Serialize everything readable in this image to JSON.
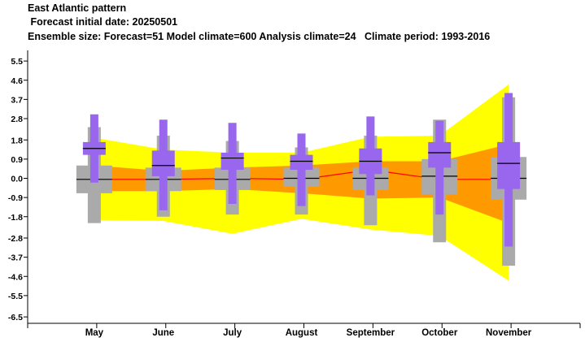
{
  "header": {
    "line1": "East Atlantic pattern",
    "line2": " Forecast initial date: 20250501",
    "line3": "Ensemble size: Forecast=51 Model climate=600 Analysis climate=24   Climate period: 1993-2016"
  },
  "colors": {
    "outer_band": "#ffff00",
    "inner_band": "#ff9900",
    "median_line": "#ff0000",
    "forecast_box": "#9966ee",
    "climate_box": "#aaaaaa",
    "median_tick": "#000000"
  },
  "chart_data": {
    "type": "box",
    "title": "East Atlantic pattern",
    "subtitle": " Forecast initial date: 20250501",
    "categories": [
      "May",
      "June",
      "July",
      "August",
      "September",
      "October",
      "November"
    ],
    "y_ticks": [
      "5.5",
      "4.6",
      "3.7",
      "2.8",
      "1.8",
      "0.9",
      "0.0",
      "-0.9",
      "-1.8",
      "-2.8",
      "-3.7",
      "-4.6",
      "-5.5",
      "-6.5"
    ],
    "y_tick_values": [
      5.5,
      4.6,
      3.7,
      2.8,
      1.8,
      0.9,
      0.0,
      -0.9,
      -1.8,
      -2.8,
      -3.7,
      -4.6,
      -5.5,
      -6.5
    ],
    "ylim": [
      -6.8,
      6.0
    ],
    "grid": false,
    "climate_band_outer": {
      "upper": [
        1.9,
        1.35,
        1.2,
        1.2,
        1.95,
        2.0,
        4.4
      ],
      "lower": [
        -1.95,
        -2.0,
        -2.6,
        -1.9,
        -2.4,
        -2.7,
        -4.8
      ]
    },
    "climate_band_inner": {
      "upper": [
        0.6,
        0.35,
        0.5,
        0.6,
        0.8,
        0.8,
        1.6
      ],
      "lower": [
        -0.6,
        -0.6,
        -0.5,
        -0.7,
        -0.95,
        -0.9,
        -2.1
      ]
    },
    "climate_median": [
      -0.05,
      -0.05,
      0.0,
      -0.05,
      0.4,
      -0.05,
      -0.05
    ],
    "model_climate": [
      {
        "min": -2.1,
        "q1": -0.7,
        "median": -0.05,
        "q3": 0.6,
        "max": 2.4
      },
      {
        "min": -1.8,
        "q1": -0.6,
        "median": -0.05,
        "q3": 0.5,
        "max": 2.0
      },
      {
        "min": -1.7,
        "q1": -0.55,
        "median": -0.05,
        "q3": 0.5,
        "max": 1.75
      },
      {
        "min": -1.7,
        "q1": -0.4,
        "median": 0.0,
        "q3": 0.5,
        "max": 1.45
      },
      {
        "min": -2.2,
        "q1": -0.55,
        "median": 0.0,
        "q3": 0.5,
        "max": 2.0
      },
      {
        "min": -3.0,
        "q1": -0.75,
        "median": 0.1,
        "q3": 0.9,
        "max": 2.75
      },
      {
        "min": -4.1,
        "q1": -1.0,
        "median": 0.0,
        "q3": 1.0,
        "max": 3.8
      }
    ],
    "forecast": [
      {
        "min": -0.2,
        "q1": 1.1,
        "median": 1.4,
        "q3": 1.7,
        "max": 3.0
      },
      {
        "min": -1.5,
        "q1": 0.1,
        "median": 0.6,
        "q3": 1.3,
        "max": 2.75
      },
      {
        "min": -1.2,
        "q1": 0.4,
        "median": 0.95,
        "q3": 1.2,
        "max": 2.6
      },
      {
        "min": -1.3,
        "q1": 0.4,
        "median": 0.8,
        "q3": 1.1,
        "max": 2.1
      },
      {
        "min": -0.8,
        "q1": 0.2,
        "median": 0.8,
        "q3": 1.4,
        "max": 2.9
      },
      {
        "min": -1.7,
        "q1": 0.5,
        "median": 1.2,
        "q3": 1.7,
        "max": 2.7
      },
      {
        "min": -3.2,
        "q1": -0.5,
        "median": 0.7,
        "q3": 1.7,
        "max": 4.0
      }
    ]
  }
}
